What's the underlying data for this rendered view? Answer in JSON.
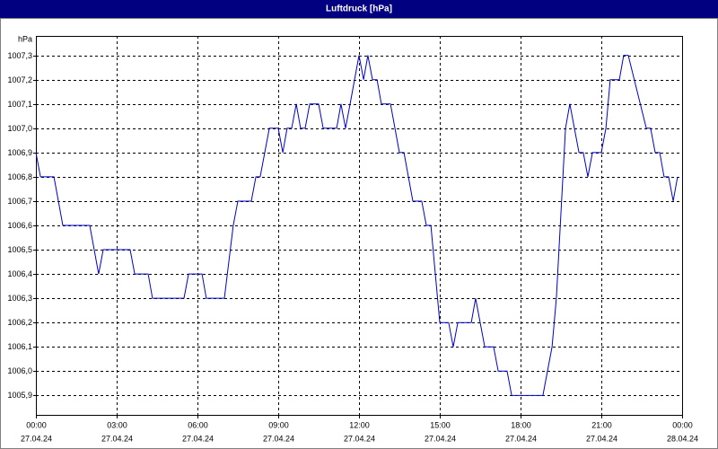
{
  "chart_data": {
    "type": "line",
    "title": "Luftdruck [hPa]",
    "y_label": "hPa",
    "x": [
      0,
      0.17,
      0.67,
      1,
      2,
      2.33,
      2.5,
      3.5,
      3.67,
      4.17,
      4.33,
      5.5,
      5.67,
      6.17,
      6.33,
      7,
      7.33,
      7.5,
      8,
      8.17,
      8.33,
      8.67,
      9,
      9.17,
      9.33,
      9.5,
      9.67,
      9.83,
      10,
      10.17,
      10.5,
      10.67,
      11.17,
      11.33,
      11.5,
      11.67,
      12,
      12.17,
      12.33,
      12.5,
      12.67,
      12.83,
      13.17,
      13.5,
      13.67,
      14,
      14.33,
      14.5,
      14.67,
      15,
      15.33,
      15.5,
      15.67,
      16.17,
      16.33,
      16.67,
      17,
      17.17,
      17.5,
      17.67,
      18.83,
      19.17,
      19.33,
      19.67,
      19.83,
      20.17,
      20.33,
      20.5,
      20.67,
      21,
      21.17,
      21.33,
      21.67,
      21.83,
      22,
      22.67,
      22.83,
      23,
      23.17,
      23.33,
      23.5,
      23.67,
      23.83
    ],
    "series": [
      {
        "name": "Luftdruck",
        "color": "#0000c8",
        "values": [
          1006.9,
          1006.8,
          1006.8,
          1006.6,
          1006.6,
          1006.4,
          1006.5,
          1006.5,
          1006.4,
          1006.4,
          1006.3,
          1006.3,
          1006.4,
          1006.4,
          1006.3,
          1006.3,
          1006.6,
          1006.7,
          1006.7,
          1006.8,
          1006.8,
          1007.0,
          1007.0,
          1006.9,
          1007.0,
          1007.0,
          1007.1,
          1007.0,
          1007.0,
          1007.1,
          1007.1,
          1007.0,
          1007.0,
          1007.1,
          1007.0,
          1007.1,
          1007.3,
          1007.2,
          1007.3,
          1007.2,
          1007.2,
          1007.1,
          1007.1,
          1006.9,
          1006.9,
          1006.7,
          1006.7,
          1006.6,
          1006.6,
          1006.2,
          1006.2,
          1006.1,
          1006.2,
          1006.2,
          1006.3,
          1006.1,
          1006.1,
          1006.0,
          1006.0,
          1005.9,
          1005.9,
          1006.1,
          1006.3,
          1007.0,
          1007.1,
          1006.9,
          1006.9,
          1006.8,
          1006.9,
          1006.9,
          1007.0,
          1007.2,
          1007.2,
          1007.3,
          1007.3,
          1007.0,
          1007.0,
          1006.9,
          1006.9,
          1006.8,
          1006.8,
          1006.7,
          1006.8
        ]
      }
    ],
    "xlim": [
      0,
      24
    ],
    "xticks": [
      {
        "value": 0,
        "label": "00:00"
      },
      {
        "value": 3,
        "label": "03:00"
      },
      {
        "value": 6,
        "label": "06:00"
      },
      {
        "value": 9,
        "label": "09:00"
      },
      {
        "value": 12,
        "label": "12:00"
      },
      {
        "value": 15,
        "label": "15:00"
      },
      {
        "value": 18,
        "label": "18:00"
      },
      {
        "value": 21,
        "label": "21:00"
      },
      {
        "value": 24,
        "label": "00:00"
      }
    ],
    "xtick_dates": [
      "27.04.24",
      "27.04.24",
      "27.04.24",
      "27.04.24",
      "27.04.24",
      "27.04.24",
      "27.04.24",
      "27.04.24",
      "28.04.24"
    ],
    "ylim": [
      1005.82,
      1007.38
    ],
    "yticks": [
      {
        "value": 1005.9,
        "label": "1005,9"
      },
      {
        "value": 1006.0,
        "label": "1006,0"
      },
      {
        "value": 1006.1,
        "label": "1006,1"
      },
      {
        "value": 1006.2,
        "label": "1006,2"
      },
      {
        "value": 1006.3,
        "label": "1006,3"
      },
      {
        "value": 1006.4,
        "label": "1006,4"
      },
      {
        "value": 1006.5,
        "label": "1006,5"
      },
      {
        "value": 1006.6,
        "label": "1006,6"
      },
      {
        "value": 1006.7,
        "label": "1006,7"
      },
      {
        "value": 1006.8,
        "label": "1006,8"
      },
      {
        "value": 1006.9,
        "label": "1006,9"
      },
      {
        "value": 1007.0,
        "label": "1007,0"
      },
      {
        "value": 1007.1,
        "label": "1007,1"
      },
      {
        "value": 1007.2,
        "label": "1007,2"
      },
      {
        "value": 1007.3,
        "label": "1007,3"
      }
    ],
    "grid": true
  }
}
